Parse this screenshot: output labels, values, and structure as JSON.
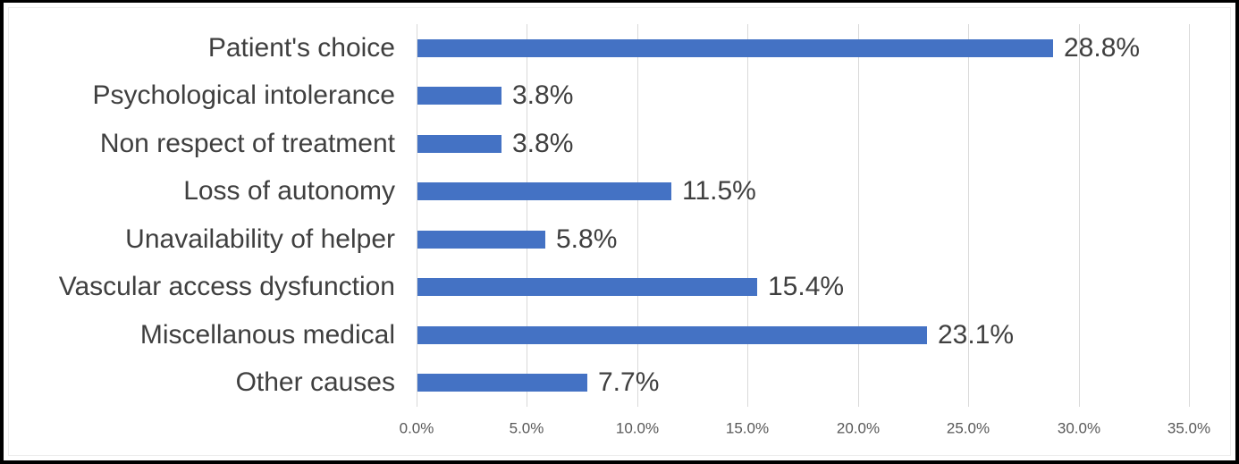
{
  "chart_data": {
    "type": "bar",
    "orientation": "horizontal",
    "title": "",
    "categories": [
      "Patient's choice",
      "Psychological intolerance",
      "Non respect of treatment",
      "Loss of autonomy",
      "Unavailability of helper",
      "Vascular access dysfunction",
      "Miscellanous medical",
      "Other causes"
    ],
    "values": [
      28.8,
      3.8,
      3.8,
      11.5,
      5.8,
      15.4,
      23.1,
      7.7
    ],
    "data_labels": [
      "28.8%",
      "3.8%",
      "3.8%",
      "11.5%",
      "5.8%",
      "15.4%",
      "23.1%",
      "7.7%"
    ],
    "x_ticks": [
      {
        "value": 0,
        "label": "0.0%"
      },
      {
        "value": 5,
        "label": "5.0%"
      },
      {
        "value": 10,
        "label": "10.0%"
      },
      {
        "value": 15,
        "label": "15.0%"
      },
      {
        "value": 20,
        "label": "20.0%"
      },
      {
        "value": 25,
        "label": "25.0%"
      },
      {
        "value": 30,
        "label": "30.0%"
      },
      {
        "value": 35,
        "label": "35.0%"
      }
    ],
    "xlim": [
      0,
      35
    ],
    "grid": true,
    "legend_position": "none",
    "colors": {
      "bar": "#4472C4",
      "gridline": "#D9D9D9",
      "category_label": "#3F3F3F",
      "data_label": "#3F3F3F",
      "tick_label": "#595959",
      "background": "#FFFFFF",
      "frame_border": "#000000"
    }
  }
}
